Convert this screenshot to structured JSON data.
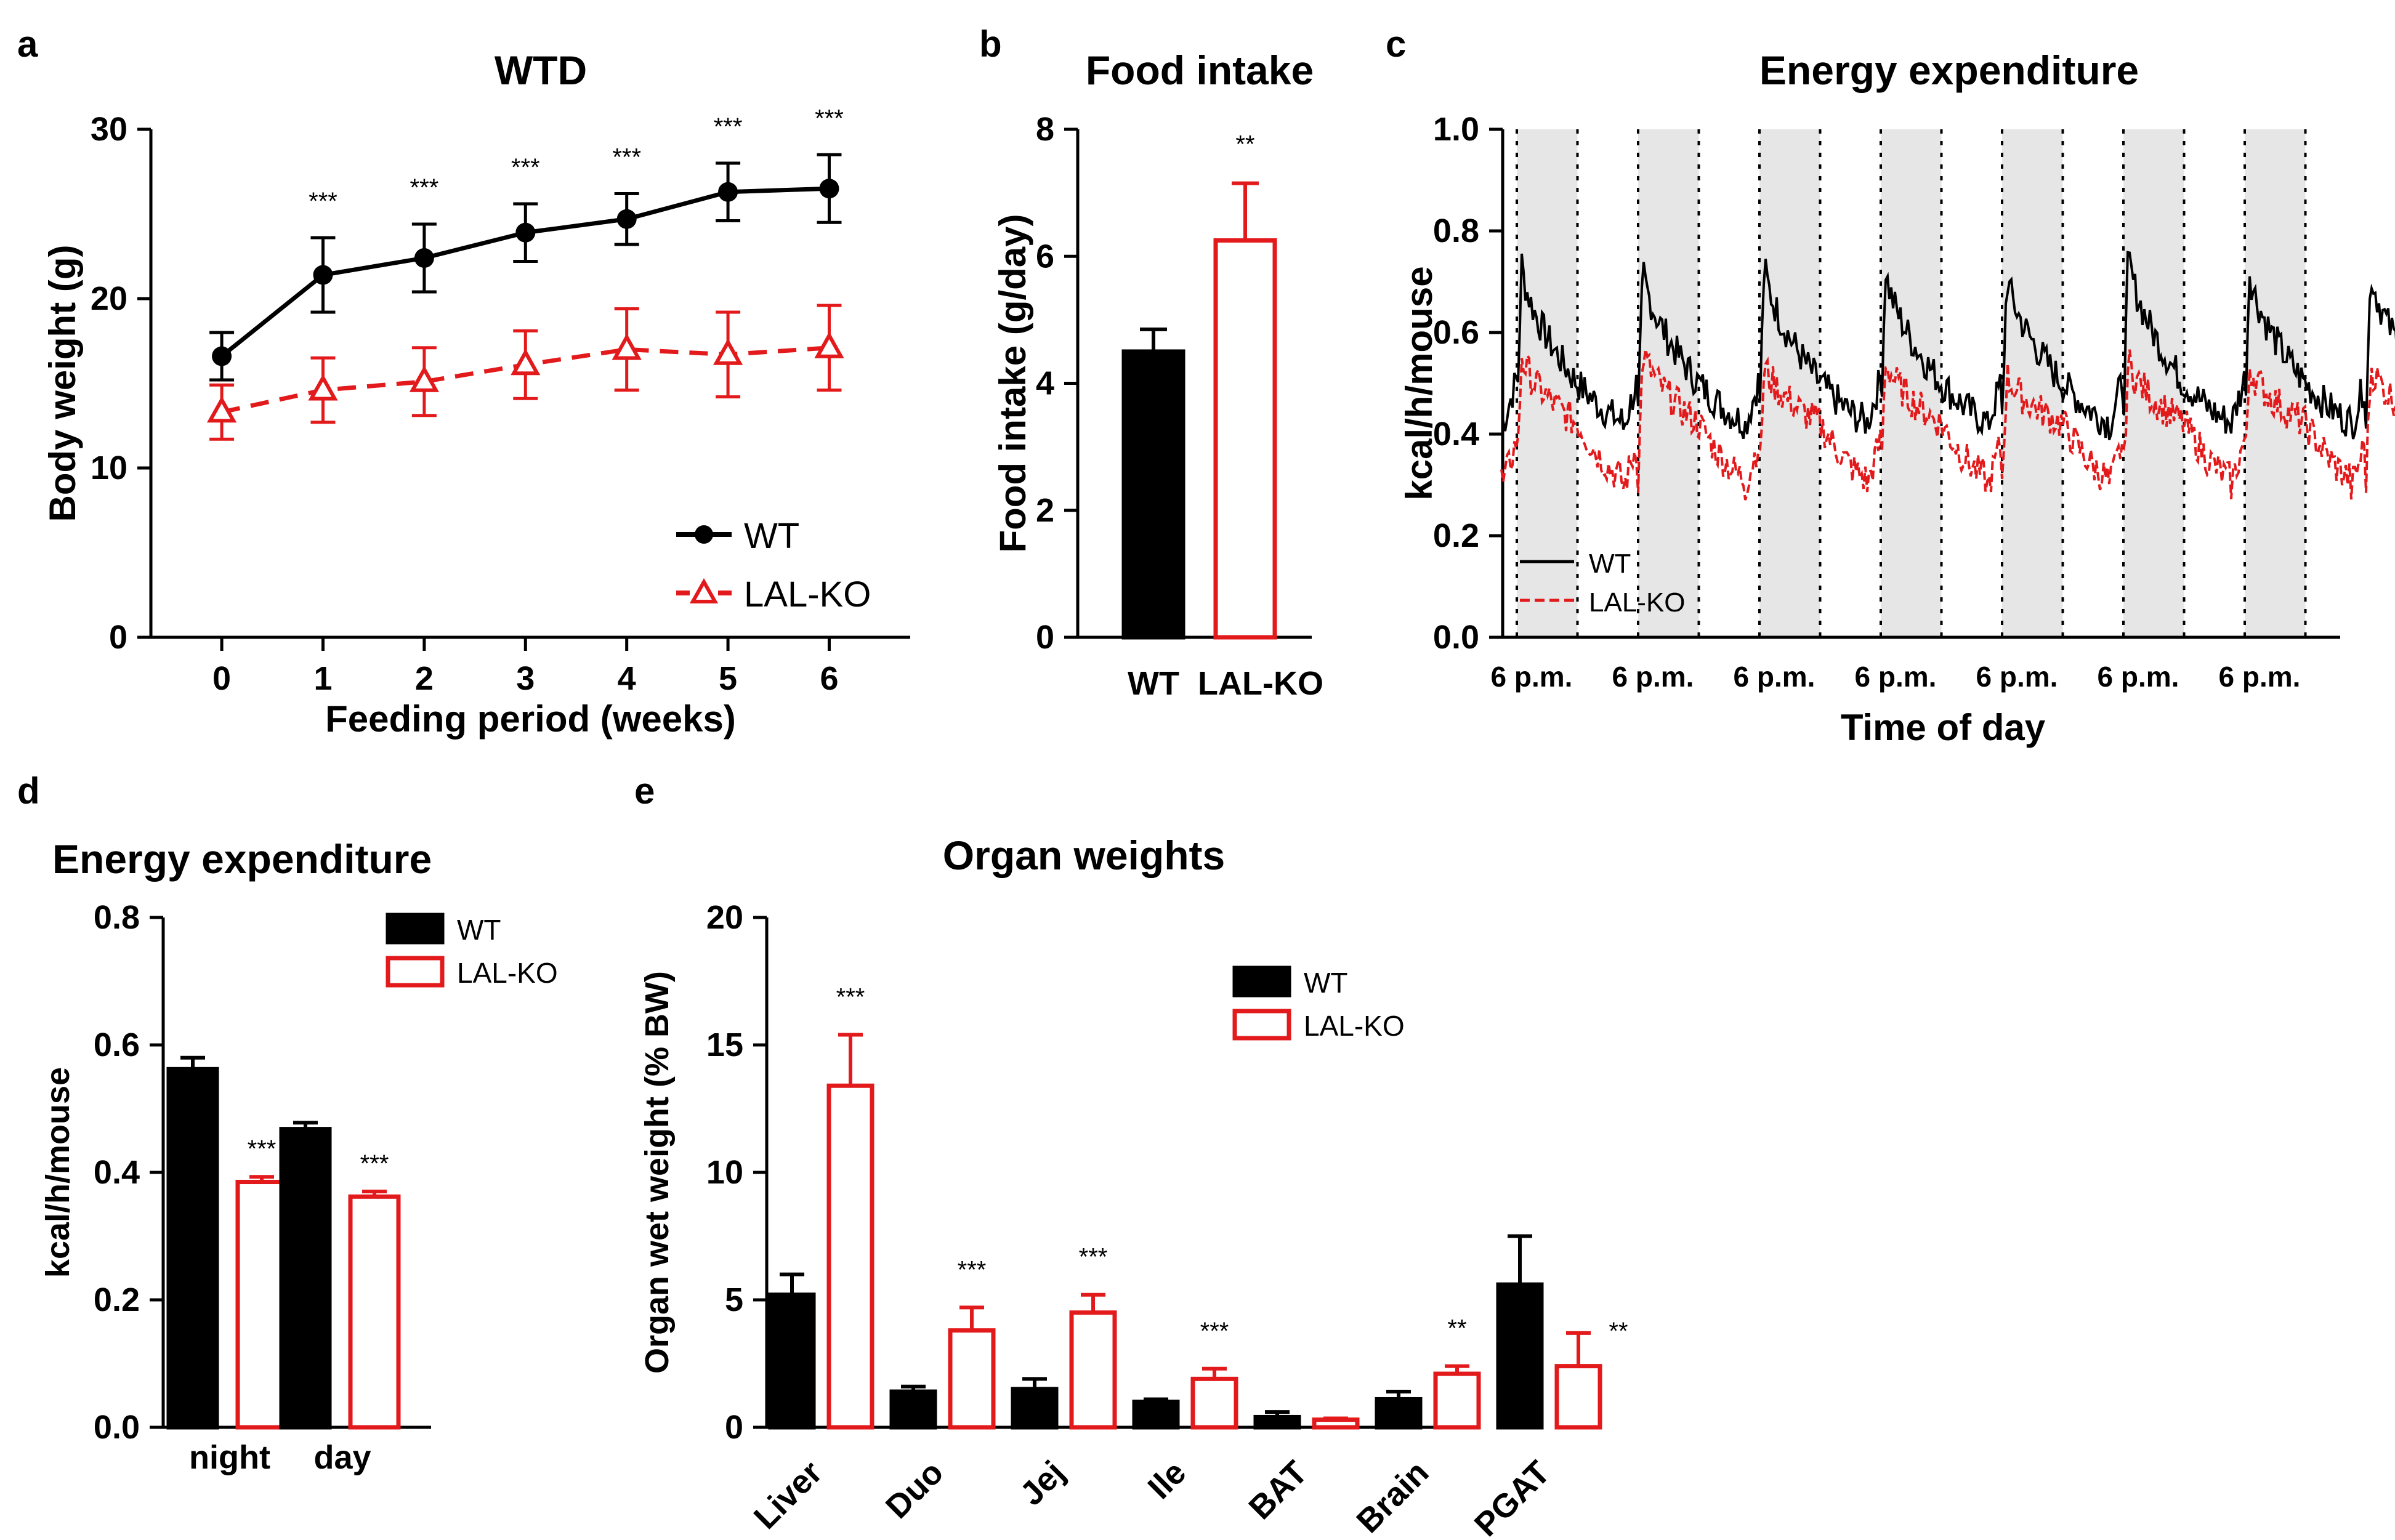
{
  "colors": {
    "wt": "#000000",
    "ko": "#e31a1c",
    "shade": "#e6e6e6"
  },
  "chart_data": [
    {
      "panel": "a",
      "type": "line",
      "title": "WTD",
      "xlabel": "Feeding period (weeks)",
      "ylabel": "Body weight (g)",
      "x": [
        0,
        1,
        2,
        3,
        4,
        5,
        6
      ],
      "x_ticks": [
        "0",
        "1",
        "2",
        "3",
        "4",
        "5",
        "6"
      ],
      "xlim": [
        -0.7,
        6.8
      ],
      "ylim": [
        0,
        30
      ],
      "y_ticks": [
        "0",
        "10",
        "20",
        "30"
      ],
      "series": [
        {
          "name": "WT",
          "marker": "filled-circle",
          "line": "solid",
          "values": [
            16.6,
            21.4,
            22.4,
            23.9,
            24.7,
            26.3,
            26.5
          ],
          "err": [
            1.4,
            2.2,
            2.0,
            1.7,
            1.5,
            1.7,
            2.0
          ]
        },
        {
          "name": "LAL-KO",
          "marker": "open-triangle",
          "line": "dashed",
          "values": [
            13.3,
            14.6,
            15.1,
            16.1,
            17.0,
            16.7,
            17.1
          ],
          "err": [
            1.6,
            1.9,
            2.0,
            2.0,
            2.4,
            2.5,
            2.5
          ]
        }
      ],
      "significance": [
        "",
        "***",
        "***",
        "***",
        "***",
        "***",
        "***"
      ],
      "legend": [
        "WT",
        "LAL-KO"
      ]
    },
    {
      "panel": "b",
      "type": "bar",
      "title": "Food intake",
      "ylabel": "Food intake (g/day)",
      "categories": [
        "WT",
        "LAL-KO"
      ],
      "values": [
        4.5,
        6.25
      ],
      "err": [
        0.35,
        0.9
      ],
      "ylim": [
        0,
        8
      ],
      "y_ticks": [
        "0",
        "2",
        "4",
        "6",
        "8"
      ],
      "significance": [
        "",
        "**"
      ]
    },
    {
      "panel": "c",
      "type": "line",
      "title": "Energy expenditure",
      "xlabel": "Time of day",
      "ylabel": "kcal/h/mouse",
      "ylim": [
        0,
        1.0
      ],
      "y_ticks": [
        "0.0",
        "0.2",
        "0.4",
        "0.6",
        "0.8",
        "1.0"
      ],
      "x_ticks": [
        "6 p.m.",
        "6 p.m.",
        "6 p.m.",
        "6 p.m.",
        "6 p.m.",
        "6 p.m.",
        "6 p.m."
      ],
      "days": 7,
      "night_fraction_of_day": 0.5,
      "series": [
        {
          "name": "WT",
          "line": "solid",
          "night_peak": 0.73,
          "night_end": 0.5,
          "day_level": 0.43,
          "night_peak_values": [
            0.74,
            0.73,
            0.74,
            0.73,
            0.72,
            0.76,
            0.73
          ]
        },
        {
          "name": "LAL-KO",
          "line": "dashed",
          "night_peak": 0.55,
          "night_end": 0.42,
          "day_level": 0.31,
          "night_peak_values": [
            0.56,
            0.57,
            0.54,
            0.55,
            0.52,
            0.55,
            0.54
          ]
        }
      ],
      "legend": [
        "WT",
        "LAL-KO"
      ]
    },
    {
      "panel": "d",
      "type": "bar",
      "title": "Energy expenditure",
      "ylabel": "kcal/h/mouse",
      "categories": [
        "night",
        "day"
      ],
      "series": [
        {
          "name": "WT",
          "values": [
            0.562,
            0.468
          ],
          "err": [
            0.018,
            0.01
          ]
        },
        {
          "name": "LAL-KO",
          "values": [
            0.385,
            0.362
          ],
          "err": [
            0.008,
            0.008
          ]
        }
      ],
      "ylim": [
        0,
        0.8
      ],
      "y_ticks": [
        "0.0",
        "0.2",
        "0.4",
        "0.6",
        "0.8"
      ],
      "significance": [
        "***",
        "***"
      ],
      "legend": [
        "WT",
        "LAL-KO"
      ]
    },
    {
      "panel": "e",
      "type": "bar",
      "title": "Organ weights",
      "ylabel": "Organ wet weight (% BW)",
      "categories": [
        "Liver",
        "Duo",
        "Jej",
        "Ile",
        "BAT",
        "Brain",
        "PGAT"
      ],
      "series": [
        {
          "name": "WT",
          "values": [
            5.2,
            1.4,
            1.5,
            1.0,
            0.4,
            1.1,
            5.6
          ],
          "err": [
            0.8,
            0.2,
            0.4,
            0.1,
            0.2,
            0.3,
            1.9
          ]
        },
        {
          "name": "LAL-KO",
          "values": [
            13.4,
            3.8,
            4.5,
            1.9,
            0.3,
            2.1,
            2.4
          ],
          "err": [
            2.0,
            0.9,
            0.7,
            0.4,
            0.05,
            0.3,
            1.3
          ]
        }
      ],
      "ylim": [
        0,
        20
      ],
      "y_ticks": [
        "0",
        "5",
        "10",
        "15",
        "20"
      ],
      "significance": [
        "***",
        "***",
        "***",
        "***",
        "",
        "**",
        "**"
      ],
      "legend": [
        "WT",
        "LAL-KO"
      ]
    }
  ]
}
